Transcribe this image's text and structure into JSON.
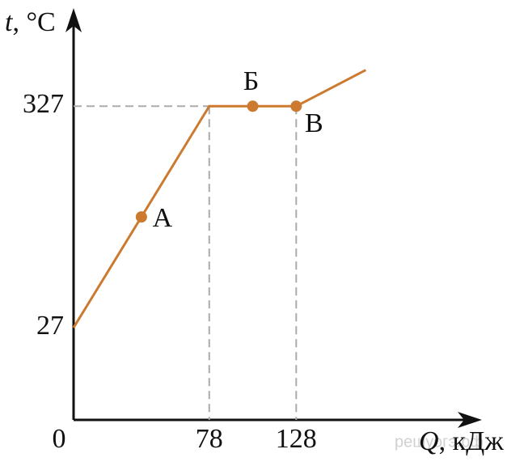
{
  "chart_data": {
    "type": "line",
    "y_label": {
      "symbol": "t",
      "unit": ", °C"
    },
    "x_label": {
      "symbol": "Q",
      "unit": ", кДж"
    },
    "x": [
      0,
      78,
      128,
      168
    ],
    "series": [
      {
        "color": "#cc7a2f",
        "values": [
          27,
          327,
          327,
          376
        ]
      }
    ],
    "points": [
      {
        "label": "А",
        "x": 39,
        "y": 177
      },
      {
        "label": "Б",
        "x": 103,
        "y": 327
      },
      {
        "label": "В",
        "x": 128,
        "y": 327
      }
    ],
    "xlim": [
      0,
      232
    ],
    "ylim": [
      -98,
      449
    ],
    "xticks": [
      0,
      78,
      128
    ],
    "yticks": [
      27,
      327
    ],
    "watermark": "решуогэ.рф"
  }
}
